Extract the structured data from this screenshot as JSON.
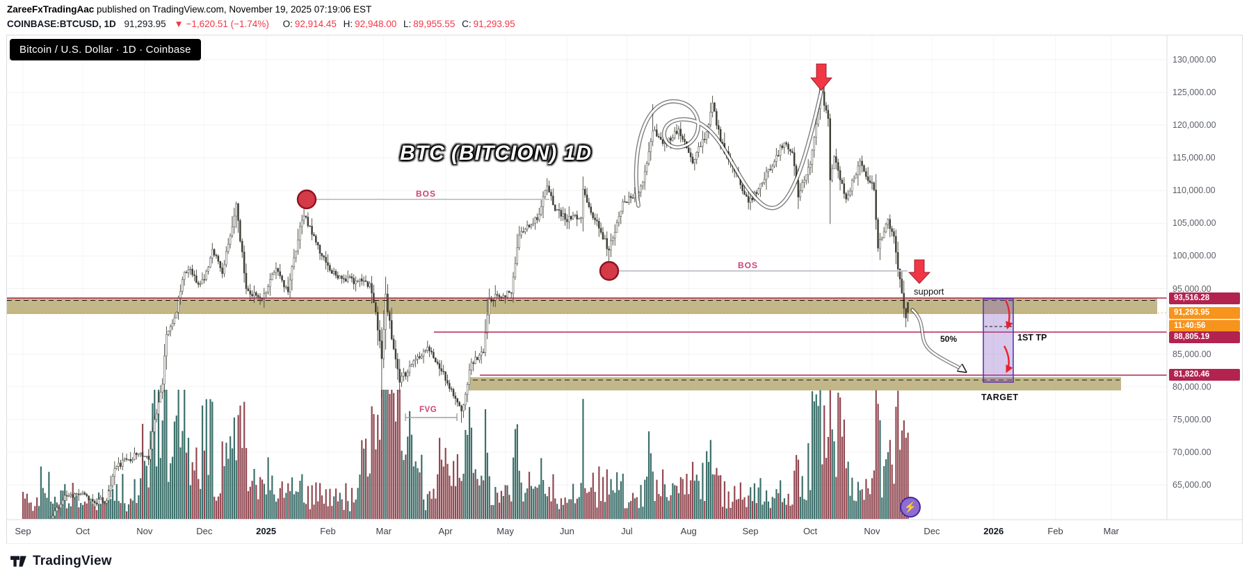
{
  "header": {
    "author": "ZareeFxTradingAac",
    "published_suffix": " published on TradingView.com, November 19, 2025 07:19:06 EST",
    "symbol": "COINBASE:BTCUSD, 1D",
    "last_price": "91,293.95",
    "change": "▼ −1,620.51 (−1.74%)",
    "o_label": "O:",
    "o_value": "92,914.45",
    "h_label": "H:",
    "h_value": "92,948.00",
    "l_label": "L:",
    "l_value": "89,955.55",
    "c_label": "C:",
    "c_value": "91,293.95"
  },
  "chart": {
    "legend_title": "Bitcoin / U.S. Dollar · 1D · Coinbase",
    "annotation_title": "BTC (BITCION) 1D",
    "labels": {
      "bos1": "BOS",
      "bos2": "BOS",
      "support": "support",
      "first_tp": "1ST TP",
      "target": "TARGET",
      "fifty_pct": "50%",
      "fvg": "FVG"
    },
    "sticker": "⚡",
    "price_chips": [
      {
        "text": "93,516.28",
        "style": "level"
      },
      {
        "text": "91,293.95",
        "style": "last"
      },
      {
        "text": "11:40:56",
        "style": "countdown"
      },
      {
        "text": "88,805.19",
        "style": "level"
      },
      {
        "text": "81,820.46",
        "style": "level"
      }
    ],
    "colors": {
      "level_pink": "#B22350",
      "accent_orange": "#F7941D",
      "red": "#F23645",
      "khaki_zone": "#B5A76F",
      "purple_box": "#5E35B1",
      "volume_up": "#1A5650",
      "volume_down": "#7E2833",
      "candle_up": "#FFFFFF",
      "candle_down": "#3F3F37",
      "candle_stroke": "#3F3F37",
      "bos_line": "#C3C7CD",
      "circle_red": "#D43A47"
    }
  },
  "chart_data": {
    "type": "candlestick",
    "symbol": "COINBASE:BTCUSD",
    "timeframe": "1D",
    "exchange": "Coinbase",
    "ohlc_today": {
      "open": 92914.45,
      "high": 92948.0,
      "low": 89955.55,
      "close": 91293.95,
      "change": -1620.51,
      "change_pct": -1.74
    },
    "y_axis": {
      "visible_range_usd": [
        59700,
        133300
      ],
      "ticks": [
        {
          "v": 130000,
          "label": "130,000.00"
        },
        {
          "v": 125000,
          "label": "125,000.00"
        },
        {
          "v": 120000,
          "label": "120,000.00"
        },
        {
          "v": 115000,
          "label": "115,000.00"
        },
        {
          "v": 110000,
          "label": "110,000.00"
        },
        {
          "v": 105000,
          "label": "105,000.00"
        },
        {
          "v": 100000,
          "label": "100,000.00"
        },
        {
          "v": 95000,
          "label": "95,000.00"
        },
        {
          "v": 85000,
          "label": "85,000.00"
        },
        {
          "v": 80000,
          "label": "80,000.00"
        },
        {
          "v": 75000,
          "label": "75,000.00"
        },
        {
          "v": 70000,
          "label": "70,000.00"
        },
        {
          "v": 65000,
          "label": "65,000.00"
        }
      ]
    },
    "x_axis_months": [
      {
        "d": 0,
        "label": "Sep"
      },
      {
        "d": 30,
        "label": "Oct"
      },
      {
        "d": 61,
        "label": "Nov"
      },
      {
        "d": 91,
        "label": "Dec"
      },
      {
        "d": 122,
        "label": "2025",
        "bold": true
      },
      {
        "d": 153,
        "label": "Feb"
      },
      {
        "d": 181,
        "label": "Mar"
      },
      {
        "d": 212,
        "label": "Apr"
      },
      {
        "d": 242,
        "label": "May"
      },
      {
        "d": 273,
        "label": "Jun"
      },
      {
        "d": 303,
        "label": "Jul"
      },
      {
        "d": 334,
        "label": "Aug"
      },
      {
        "d": 365,
        "label": "Sep"
      },
      {
        "d": 395,
        "label": "Oct"
      },
      {
        "d": 426,
        "label": "Nov"
      },
      {
        "d": 456,
        "label": "Dec"
      },
      {
        "d": 487,
        "label": "2026",
        "bold": true
      },
      {
        "d": 518,
        "label": "Feb"
      },
      {
        "d": 546,
        "label": "Mar"
      }
    ],
    "close_anchors_kusd": [
      [
        0,
        57.3
      ],
      [
        7,
        54.2
      ],
      [
        14,
        59.8
      ],
      [
        21,
        63.4
      ],
      [
        29,
        63.6
      ],
      [
        35,
        62.5
      ],
      [
        42,
        62.6
      ],
      [
        46,
        67.5
      ],
      [
        52,
        68.9
      ],
      [
        59,
        69.9
      ],
      [
        63,
        68.9
      ],
      [
        66,
        75.0
      ],
      [
        70,
        80.4
      ],
      [
        72,
        88.0
      ],
      [
        76,
        90.5
      ],
      [
        81,
        97.5
      ],
      [
        84,
        98.0
      ],
      [
        87,
        95.9
      ],
      [
        91,
        96.4
      ],
      [
        95,
        101.0
      ],
      [
        100,
        97.3
      ],
      [
        106,
        106.1
      ],
      [
        107,
        108.0
      ],
      [
        112,
        95.0
      ],
      [
        119,
        93.5
      ],
      [
        122,
        94.5
      ],
      [
        127,
        98.1
      ],
      [
        133,
        94.5
      ],
      [
        139,
        104.5
      ],
      [
        141,
        106.1
      ],
      [
        147,
        102.1
      ],
      [
        154,
        97.8
      ],
      [
        161,
        96.5
      ],
      [
        168,
        96.2
      ],
      [
        174,
        95.8
      ],
      [
        177,
        91.4
      ],
      [
        180,
        84.3
      ],
      [
        182,
        94.2
      ],
      [
        185,
        87.3
      ],
      [
        189,
        80.7
      ],
      [
        196,
        84.0
      ],
      [
        203,
        86.1
      ],
      [
        210,
        82.4
      ],
      [
        217,
        78.2
      ],
      [
        220,
        76.3
      ],
      [
        225,
        83.7
      ],
      [
        231,
        85.2
      ],
      [
        234,
        93.4
      ],
      [
        238,
        94.0
      ],
      [
        245,
        94.3
      ],
      [
        249,
        103.2
      ],
      [
        252,
        104.1
      ],
      [
        259,
        106.4
      ],
      [
        263,
        110.7
      ],
      [
        266,
        107.8
      ],
      [
        272,
        105.6
      ],
      [
        280,
        105.8
      ],
      [
        281,
        110.2
      ],
      [
        287,
        105.5
      ],
      [
        294,
        100.9
      ],
      [
        301,
        108.3
      ],
      [
        308,
        109.2
      ],
      [
        311,
        111.3
      ],
      [
        315,
        117.5
      ],
      [
        316,
        119.1
      ],
      [
        322,
        117.3
      ],
      [
        329,
        119.4
      ],
      [
        336,
        114.2
      ],
      [
        343,
        119.0
      ],
      [
        346,
        123.4
      ],
      [
        350,
        117.4
      ],
      [
        357,
        113.0
      ],
      [
        364,
        108.2
      ],
      [
        371,
        111.2
      ],
      [
        378,
        115.4
      ],
      [
        382,
        117.3
      ],
      [
        386,
        115.8
      ],
      [
        389,
        109.0
      ],
      [
        393,
        112.4
      ],
      [
        395,
        114.0
      ],
      [
        399,
        122.5
      ],
      [
        400,
        125.9
      ],
      [
        404,
        121.0
      ],
      [
        405,
        111.6
      ],
      [
        407,
        115.2
      ],
      [
        413,
        108.7
      ],
      [
        420,
        114.5
      ],
      [
        427,
        110.1
      ],
      [
        429,
        101.2
      ],
      [
        434,
        105.6
      ],
      [
        437,
        103.0
      ],
      [
        439,
        98.0
      ],
      [
        441,
        94.3
      ],
      [
        442,
        92.0
      ],
      [
        443,
        90.5
      ],
      [
        444,
        91.29
      ]
    ],
    "wick_extremes_kusd": [
      [
        107,
        "h",
        108.3
      ],
      [
        141,
        "h",
        109.35
      ],
      [
        180,
        "l",
        78.3
      ],
      [
        220,
        "l",
        74.5
      ],
      [
        263,
        "h",
        111.9
      ],
      [
        294,
        "l",
        98.2
      ],
      [
        316,
        "h",
        123.2
      ],
      [
        346,
        "h",
        124.5
      ],
      [
        400,
        "h",
        126.2
      ],
      [
        405,
        "l",
        104.9
      ]
    ],
    "levels": {
      "zone_resistance_top": 93516.28,
      "last_price": 91293.95,
      "first_tp": 88805.19,
      "target": 81820.46,
      "bos_1": 108650,
      "bos_2": 97710
    }
  },
  "footer": {
    "brand": "TradingView"
  }
}
